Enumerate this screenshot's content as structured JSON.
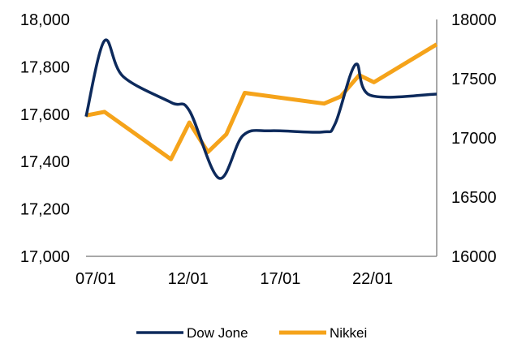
{
  "chart_data": {
    "type": "line",
    "x_labels": [
      "07/01",
      "12/01",
      "17/01",
      "22/01"
    ],
    "left_axis": {
      "ylim": [
        17000,
        18000
      ],
      "tick_values": [
        17000,
        17200,
        17400,
        17600,
        17800,
        18000
      ],
      "tick_labels": [
        "17,000",
        "17,200",
        "17,400",
        "17,600",
        "17,800",
        "18,000"
      ]
    },
    "right_axis": {
      "ylim": [
        16000,
        18000
      ],
      "tick_values": [
        16000,
        16500,
        17000,
        17500,
        18000
      ],
      "tick_labels": [
        "16000",
        "16500",
        "17000",
        "17500",
        "18000"
      ]
    },
    "grid": false,
    "legend_position": "bottom",
    "series": [
      {
        "name": "Dow Jone",
        "axis": "left",
        "color": "#0d2a5c",
        "smooth": true,
        "points": [
          {
            "day": 7,
            "value": 17590
          },
          {
            "day": 8,
            "value": 17910
          },
          {
            "day": 9,
            "value": 17760
          },
          {
            "day": 11.6,
            "value": 17650
          },
          {
            "day": 12.6,
            "value": 17615
          },
          {
            "day": 14.2,
            "value": 17330
          },
          {
            "day": 15.5,
            "value": 17510
          },
          {
            "day": 17,
            "value": 17530
          },
          {
            "day": 19.8,
            "value": 17525
          },
          {
            "day": 20.5,
            "value": 17560
          },
          {
            "day": 21.6,
            "value": 17810
          },
          {
            "day": 22.4,
            "value": 17680
          },
          {
            "day": 26,
            "value": 17685
          }
        ]
      },
      {
        "name": "Nikkei",
        "axis": "right",
        "color": "#f5a31a",
        "smooth": false,
        "points": [
          {
            "day": 7,
            "value": 17190
          },
          {
            "day": 8,
            "value": 17220
          },
          {
            "day": 11.6,
            "value": 16820
          },
          {
            "day": 12.6,
            "value": 17130
          },
          {
            "day": 13.6,
            "value": 16880
          },
          {
            "day": 14.6,
            "value": 17030
          },
          {
            "day": 15.6,
            "value": 17380
          },
          {
            "day": 19.9,
            "value": 17290
          },
          {
            "day": 20.8,
            "value": 17350
          },
          {
            "day": 21.8,
            "value": 17530
          },
          {
            "day": 22.6,
            "value": 17470
          },
          {
            "day": 26,
            "value": 17790
          }
        ]
      }
    ]
  }
}
